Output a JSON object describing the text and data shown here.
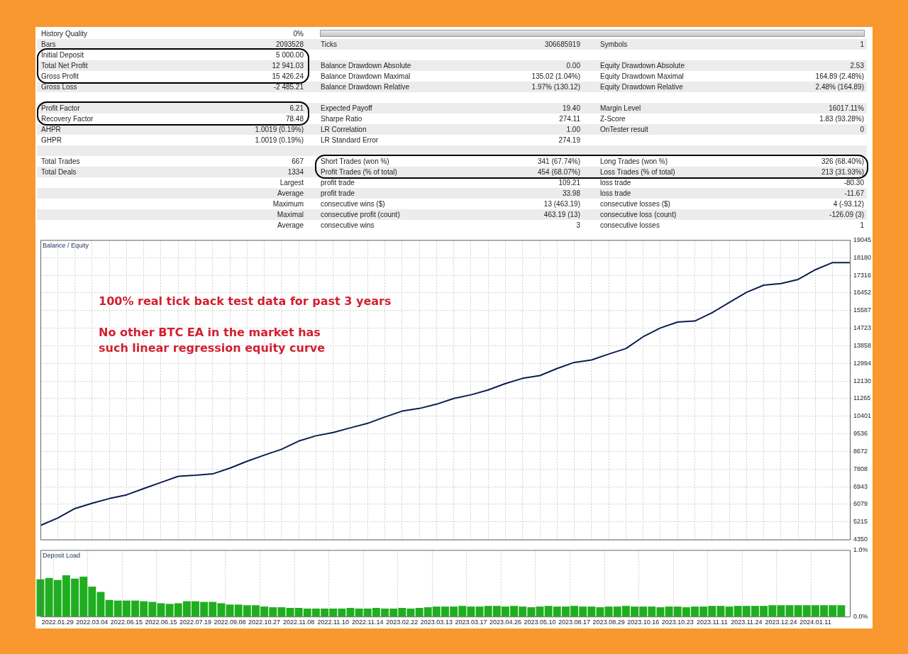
{
  "chart_data": [
    {
      "type": "other",
      "annotations": [
        "History Quality",
        "0%"
      ]
    },
    {
      "type": "other",
      "annotations": [
        "Bars",
        "2093528",
        "Ticks",
        "306685919",
        "Symbols",
        "1"
      ]
    },
    {
      "type": "other",
      "annotations": [
        "Initial Deposit",
        "5 000.00"
      ]
    },
    {
      "type": "other",
      "annotations": [
        "Total Net Profit",
        "12 941.03",
        "Balance Drawdown Absolute",
        "0.00",
        "Equity Drawdown Absolute",
        "2.53",
        "Gross Profit",
        "15 426.24",
        "Balance Drawdown Maximal",
        "135.02 (1.04%)",
        "Equity Drawdown Maximal",
        "164.89 (2.48%)",
        "Gross Loss",
        "-2 485.21",
        "Balance Drawdown Relative",
        "1.97% (130.12)",
        "Equity Drawdown Relative",
        "2.48% (164.89)"
      ]
    },
    {
      "type": "other",
      "annotations": [
        "Profit Factor",
        "6.21",
        "Expected Payoff",
        "19.40",
        "Margin Level",
        "16017.11%",
        "Recovery Factor",
        "78.48",
        "Sharpe Ratio",
        "274.11",
        "Z-Score",
        "1.83 (93.28%)",
        "AHPR",
        "1.0019 (0.19%)",
        "LR Correlation",
        "1.00",
        "OnTester result",
        "0"
      ]
    },
    {
      "type": "other",
      "annotations": [
        "GHPR",
        "1.0019 (0.19%)",
        "LR Standard Error",
        "274.19"
      ]
    },
    {
      "type": "other",
      "annotations": [
        "Total Trades",
        "667",
        "Short Trades (won %)",
        "341 (67.74%)",
        "Long Trades (won %)",
        "326 (68.40%)",
        "Total Deals",
        "1334",
        "Profit Trades (% of total)",
        "454 (68.07%)",
        "Loss Trades (% of total)",
        "213 (31.93%)"
      ]
    },
    {
      "type": "other",
      "annotations": [
        "Largest",
        "profit trade",
        "109.21",
        "loss trade",
        "-80.30",
        "Average",
        "profit trade",
        "33.98",
        "loss trade",
        "-11.67",
        "Maximum",
        "consecutive wins ($)",
        "13 (463.19)",
        "consecutive losses ($)",
        "4 (-93.12)",
        "Maximal",
        "consecutive profit (count)",
        "463.19 (13)",
        "consecutive loss (count)",
        "-126.09 (3)",
        "Average",
        "consecutive wins",
        "3",
        "consecutive losses",
        "1"
      ]
    },
    {
      "type": "line",
      "title": "Balance / Equity",
      "categories": [
        null,
        "2022.01.29",
        null,
        "2022.03.04",
        null,
        "2022.06.15",
        null,
        "2022.06.15",
        null,
        "2022.07.19",
        null,
        "2022.09.08",
        null,
        "2022.10.27",
        null,
        "2022.11.08",
        null,
        "2022.11.10",
        null,
        "2022.11.14",
        null,
        "2023.02.22",
        null,
        "2023.03.13",
        null,
        "2023.03.17",
        null,
        "2023.04.26",
        null,
        "2023.05.10",
        null,
        "2023.08.17",
        null,
        "2023.08.29",
        null,
        "2023.10.16",
        null,
        "2023.10.23",
        null,
        "2023.11.11",
        null,
        "2023.11.24",
        null,
        "2023.12.24",
        null,
        "2024.01.11",
        null,
        null
      ],
      "series": [
        {
          "color": "#0b1f4e",
          "values": [
            5040,
            5400,
            5870,
            6130,
            6360,
            6540,
            6850,
            7150,
            7450,
            7500,
            7570,
            7850,
            8190,
            8490,
            8780,
            9180,
            9440,
            9600,
            9830,
            10050,
            10360,
            10650,
            10780,
            10990,
            11270,
            11450,
            11690,
            12000,
            12260,
            12390,
            12740,
            13040,
            13160,
            13450,
            13720,
            14300,
            14730,
            15020,
            15070,
            15480,
            15980,
            16480,
            16830,
            16910,
            17110,
            17590,
            17940,
            17940
          ]
        }
      ],
      "ylim": [
        4350,
        19045
      ],
      "yticks": [
        4350,
        5215,
        6079,
        6943,
        7808,
        8672,
        9536,
        10401,
        11265,
        12130,
        12994,
        13858,
        14723,
        15587,
        16452,
        17316,
        18180,
        19045
      ],
      "grid": true,
      "tick_labels": "y",
      "annotations": [
        "100% real tick back test data for past 3 years",
        "No other BTC EA in the market has such linear regression equity curve"
      ]
    },
    {
      "type": "bar",
      "title": "Deposit Load",
      "categories": [
        null,
        null,
        "2022.01.29",
        null,
        null,
        null,
        "2022.03.04",
        null,
        null,
        null,
        "2022.06.15",
        null,
        null,
        null,
        "2022.06.15",
        null,
        null,
        null,
        "2022.07.19",
        null,
        null,
        null,
        "2022.09.08",
        null,
        null,
        null,
        "2022.10.27",
        null,
        null,
        null,
        "2022.11.08",
        null,
        null,
        null,
        "2022.11.10",
        null,
        null,
        null,
        "2022.11.14",
        null,
        null,
        null,
        "2023.02.22",
        null,
        null,
        null,
        "2023.03.13",
        null,
        null,
        null,
        "2023.03.17",
        null,
        null,
        null,
        "2023.04.26",
        null,
        null,
        null,
        "2023.05.10",
        null,
        null,
        null,
        "2023.08.17",
        null,
        null,
        null,
        "2023.08.29",
        null,
        null,
        null,
        "2023.10.16",
        null,
        null,
        null,
        "2023.10.23",
        null,
        null,
        null,
        "2023.11.11",
        null,
        null,
        null,
        "2023.11.24",
        null,
        null,
        null,
        "2023.12.24",
        null,
        null,
        null,
        "2024.01.11",
        null,
        null,
        null,
        null
      ],
      "values": [
        0.56,
        0.58,
        0.55,
        0.62,
        0.57,
        0.6,
        0.45,
        0.37,
        0.25,
        0.24,
        0.24,
        0.24,
        0.23,
        0.22,
        0.2,
        0.19,
        0.2,
        0.23,
        0.23,
        0.22,
        0.22,
        0.2,
        0.18,
        0.18,
        0.17,
        0.17,
        0.15,
        0.14,
        0.14,
        0.13,
        0.13,
        0.12,
        0.12,
        0.12,
        0.12,
        0.12,
        0.13,
        0.12,
        0.12,
        0.13,
        0.12,
        0.12,
        0.13,
        0.12,
        0.13,
        0.14,
        0.15,
        0.15,
        0.15,
        0.16,
        0.15,
        0.15,
        0.16,
        0.16,
        0.15,
        0.16,
        0.15,
        0.14,
        0.15,
        0.16,
        0.15,
        0.15,
        0.16,
        0.15,
        0.15,
        0.14,
        0.15,
        0.15,
        0.16,
        0.15,
        0.15,
        0.15,
        0.14,
        0.15,
        0.15,
        0.14,
        0.15,
        0.15,
        0.16,
        0.16,
        0.15,
        0.16,
        0.16,
        0.16,
        0.16,
        0.17,
        0.17,
        0.17,
        0.17,
        0.17,
        0.17,
        0.17,
        0.17,
        0.17,
        null
      ],
      "color": "#1fae1f",
      "ylim": [
        0,
        1
      ],
      "yticks": [
        {
          "value": 0,
          "label": "0.0%"
        },
        {
          "value": 1,
          "label": "1.0%"
        }
      ],
      "grid": "x"
    }
  ]
}
